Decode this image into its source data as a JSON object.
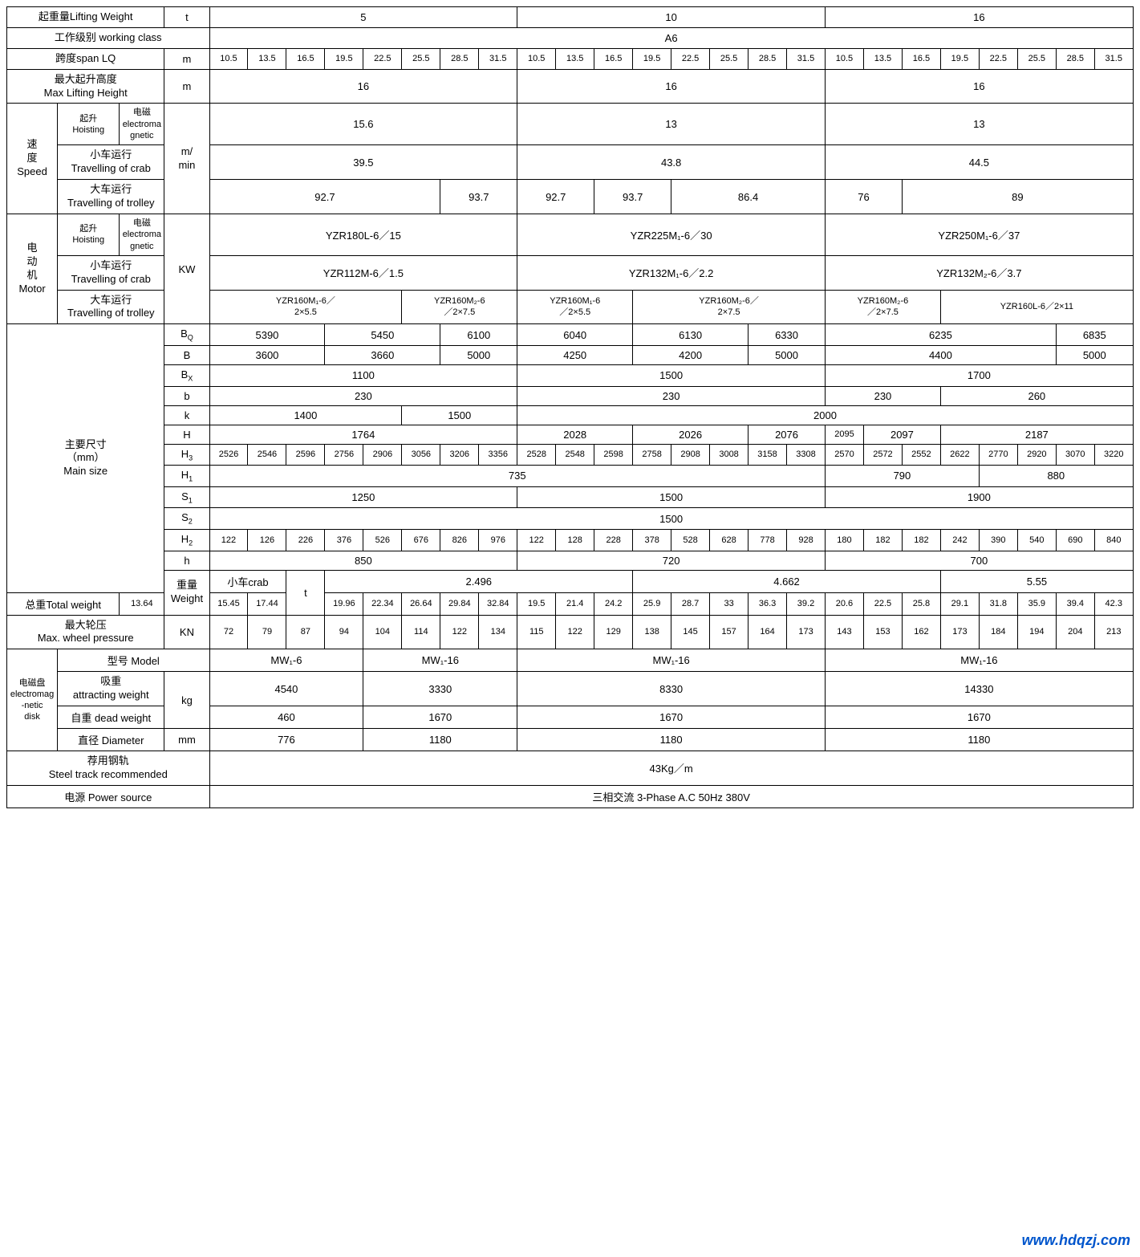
{
  "labels": {
    "lifting_weight": "起重量Lifting Weight",
    "working_class": "工作级别 working class",
    "span": "跨度span   LQ",
    "max_lift_height": "最大起升高度\nMax Lifting Height",
    "speed": "速\n度\nSpeed",
    "hoisting": "起升\nHoisting",
    "electromagnetic": "电磁\nelectromagnetic",
    "travel_crab": "小车运行\nTravelling of crab",
    "travel_trolley": "大车运行\nTravelling of trolley",
    "motor": "电\n动\n机\nMotor",
    "main_size": "主要尺寸\n（mm）\nMain size",
    "weight": "重量\nWeight",
    "crab": "小车crab",
    "total_weight": "总重Total weight",
    "max_wheel": "最大轮压\nMax.   wheel pressure",
    "em_disk": "电磁盘\nelectromag\n-netic\ndisk",
    "model": "型号 Model",
    "attracting": "吸重\nattracting weight",
    "dead_weight": "自重 dead weight",
    "diameter": "直径 Diameter",
    "steel_track": "荐用钢轨\nSteel track recommended",
    "power_source": "电源 Power source"
  },
  "units": {
    "t": "t",
    "m": "m",
    "m_min": "m/\nmin",
    "kw": "KW",
    "kn": "KN",
    "kg": "kg",
    "mm": "mm"
  },
  "sizes": {
    "bq": "B",
    "bq_sub": "Q",
    "b": "B",
    "bx": "B",
    "bx_sub": "X",
    "bb": "b",
    "k": "k",
    "h_cap": "H",
    "h3": "H",
    "h3_sub": "3",
    "h1": "H",
    "h1_sub": "1",
    "s1": "S",
    "s1_sub": "1",
    "s2": "S",
    "s2_sub": "2",
    "h2": "H",
    "h2_sub": "2",
    "hl": "h"
  },
  "values": {
    "lifting": [
      "5",
      "10",
      "16"
    ],
    "working_class": "A6",
    "spans": [
      "10.5",
      "13.5",
      "16.5",
      "19.5",
      "22.5",
      "25.5",
      "28.5",
      "31.5",
      "10.5",
      "13.5",
      "16.5",
      "19.5",
      "22.5",
      "25.5",
      "28.5",
      "31.5",
      "10.5",
      "13.5",
      "16.5",
      "19.5",
      "22.5",
      "25.5",
      "28.5",
      "31.5"
    ],
    "max_height": [
      "16",
      "16",
      "16"
    ],
    "hoist_speed": [
      "15.6",
      "13",
      "13"
    ],
    "crab_speed": [
      "39.5",
      "43.8",
      "44.5"
    ],
    "trolley_speed_5a": "92.7",
    "trolley_speed_5b": "93.7",
    "trolley_speed_10a": "92.7",
    "trolley_speed_10b": "93.7",
    "trolley_speed_10c": "86.4",
    "trolley_speed_16a": "76",
    "trolley_speed_16b": "89",
    "motor_hoist": [
      "YZR180L-6／15",
      "YZR225M₁-6／30",
      "YZR250M₁-6／37"
    ],
    "motor_crab": [
      "YZR112M-6／1.5",
      "YZR132M₁-6／2.2",
      "YZR132M₂-6／3.7"
    ],
    "motor_trolley_5a": "YZR160M₁-6／\n2×5.5",
    "motor_trolley_5b": "YZR160M₂-6\n／2×7.5",
    "motor_trolley_10a": "YZR160M₁-6\n／2×5.5",
    "motor_trolley_10b": "YZR160M₂-6／\n2×7.5",
    "motor_trolley_16a": "YZR160M₂-6\n／2×7.5",
    "motor_trolley_16b": "YZR160L-6／2×11",
    "bq": [
      "5390",
      "5450",
      "6100",
      "6040",
      "6130",
      "6330",
      "6235",
      "6835"
    ],
    "b_row": [
      "3600",
      "3660",
      "5000",
      "4250",
      "4200",
      "5000",
      "4400",
      "5000"
    ],
    "bx_row": [
      "1100",
      "1500",
      "1700"
    ],
    "b_small_5": "230",
    "b_small_10": "230",
    "b_small_16a": "230",
    "b_small_16b": "260",
    "k_5a": "1400",
    "k_5b": "1500",
    "k_rest": "2000",
    "h_5": "1764",
    "h_10a": "2028",
    "h_10b": "2026",
    "h_10c": "2076",
    "h_16a": "2095",
    "h_16b": "2097",
    "h_16c": "2187",
    "h3": [
      "2526",
      "2546",
      "2596",
      "2756",
      "2906",
      "3056",
      "3206",
      "3356",
      "2528",
      "2548",
      "2598",
      "2758",
      "2908",
      "3008",
      "3158",
      "3308",
      "2570",
      "2572",
      "2552",
      "2622",
      "2770",
      "2920",
      "3070",
      "3220"
    ],
    "h1_a": "735",
    "h1_b": "790",
    "h1_c": "880",
    "s1": [
      "1250",
      "1500",
      "1900"
    ],
    "s2": "1500",
    "h2": [
      "122",
      "126",
      "226",
      "376",
      "526",
      "676",
      "826",
      "976",
      "122",
      "128",
      "228",
      "378",
      "528",
      "628",
      "778",
      "928",
      "180",
      "182",
      "182",
      "242",
      "390",
      "540",
      "690",
      "840"
    ],
    "h_row": [
      "850",
      "720",
      "700"
    ],
    "crab_wt": [
      "2.496",
      "4.662",
      "5.55"
    ],
    "total_wt": [
      "13.64",
      "15.45",
      "17.44",
      "19.96",
      "22.34",
      "26.64",
      "29.84",
      "32.84",
      "19.5",
      "21.4",
      "24.2",
      "25.9",
      "28.7",
      "33",
      "36.3",
      "39.2",
      "20.6",
      "22.5",
      "25.8",
      "29.1",
      "31.8",
      "35.9",
      "39.4",
      "42.3"
    ],
    "wheel_p": [
      "72",
      "79",
      "87",
      "94",
      "104",
      "114",
      "122",
      "134",
      "115",
      "122",
      "129",
      "138",
      "145",
      "157",
      "164",
      "173",
      "143",
      "153",
      "162",
      "173",
      "184",
      "194",
      "204",
      "213"
    ],
    "model_5a": "MW₁-6",
    "model_5b": "MW₁-16",
    "model_10": "MW₁-16",
    "model_16": "MW₁-16",
    "attract_5a": "4540",
    "attract_5b": "3330",
    "attract_10": "8330",
    "attract_16": "14330",
    "dead_5a": "460",
    "dead_5b": "1670",
    "dead_10": "1670",
    "dead_16": "1670",
    "dia_5a": "776",
    "dia_5b": "1180",
    "dia_10": "1180",
    "dia_16": "1180",
    "steel_track": "43Kg／m",
    "power": "三相交流   3-Phase    A.C    50Hz    380V"
  },
  "watermark": "www.hdqzj.com",
  "colors": {
    "border": "#000000",
    "text": "#000000",
    "watermark": "#0055cc",
    "bg": "#ffffff"
  }
}
